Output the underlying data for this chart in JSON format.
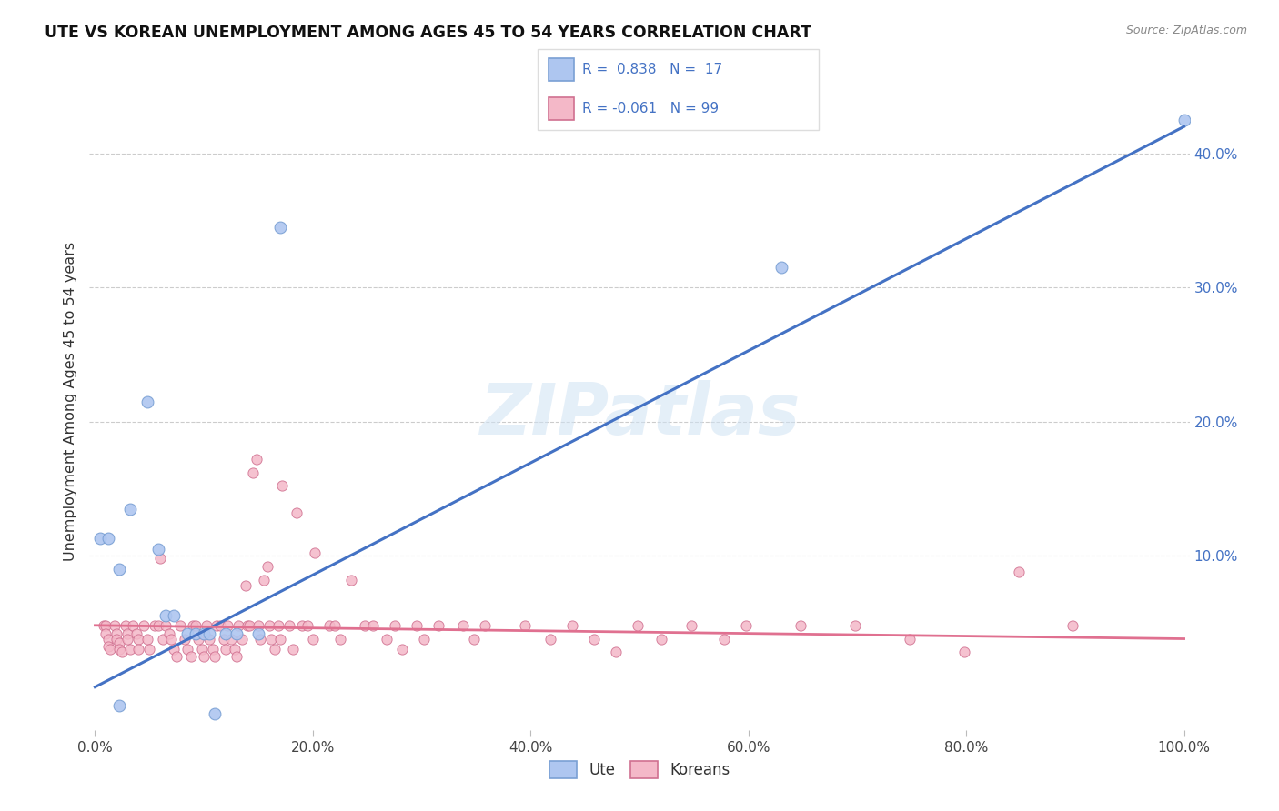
{
  "title": "UTE VS KOREAN UNEMPLOYMENT AMONG AGES 45 TO 54 YEARS CORRELATION CHART",
  "source": "Source: ZipAtlas.com",
  "ylabel": "Unemployment Among Ages 45 to 54 years",
  "xlim": [
    0.0,
    1.0
  ],
  "ylim": [
    -0.03,
    0.46
  ],
  "xticks": [
    0.0,
    0.2,
    0.4,
    0.6,
    0.8,
    1.0
  ],
  "xtick_labels": [
    "0.0%",
    "20.0%",
    "40.0%",
    "60.0%",
    "80.0%",
    "100.0%"
  ],
  "yticks": [
    0.1,
    0.2,
    0.3,
    0.4
  ],
  "ytick_labels": [
    "10.0%",
    "20.0%",
    "30.0%",
    "40.0%"
  ],
  "ute_color": "#aec6f0",
  "korean_color": "#f4b8c8",
  "ute_line_color": "#4472c4",
  "korean_line_color": "#e07090",
  "ute_edge_color": "#7aa0d4",
  "korean_edge_color": "#d07090",
  "watermark": "ZIPatlas",
  "ute_line": [
    0.0,
    0.002,
    1.0,
    0.42
  ],
  "korean_line": [
    0.0,
    0.048,
    1.0,
    0.038
  ],
  "ute_scatter": [
    [
      0.005,
      0.113
    ],
    [
      0.012,
      0.113
    ],
    [
      0.022,
      0.09
    ],
    [
      0.032,
      0.135
    ],
    [
      0.048,
      0.215
    ],
    [
      0.058,
      0.105
    ],
    [
      0.065,
      0.055
    ],
    [
      0.072,
      0.055
    ],
    [
      0.085,
      0.042
    ],
    [
      0.092,
      0.042
    ],
    [
      0.1,
      0.042
    ],
    [
      0.105,
      0.042
    ],
    [
      0.12,
      0.042
    ],
    [
      0.13,
      0.042
    ],
    [
      0.15,
      0.042
    ],
    [
      0.17,
      0.345
    ],
    [
      0.63,
      0.315
    ],
    [
      1.0,
      0.425
    ],
    [
      0.022,
      -0.012
    ],
    [
      0.11,
      -0.018
    ]
  ],
  "korean_scatter": [
    [
      0.008,
      0.048
    ],
    [
      0.01,
      0.048
    ],
    [
      0.01,
      0.042
    ],
    [
      0.012,
      0.038
    ],
    [
      0.012,
      0.032
    ],
    [
      0.014,
      0.03
    ],
    [
      0.018,
      0.048
    ],
    [
      0.02,
      0.042
    ],
    [
      0.02,
      0.038
    ],
    [
      0.022,
      0.035
    ],
    [
      0.022,
      0.03
    ],
    [
      0.025,
      0.028
    ],
    [
      0.028,
      0.048
    ],
    [
      0.03,
      0.042
    ],
    [
      0.03,
      0.038
    ],
    [
      0.032,
      0.03
    ],
    [
      0.035,
      0.048
    ],
    [
      0.038,
      0.042
    ],
    [
      0.04,
      0.038
    ],
    [
      0.04,
      0.03
    ],
    [
      0.045,
      0.048
    ],
    [
      0.048,
      0.038
    ],
    [
      0.05,
      0.03
    ],
    [
      0.055,
      0.048
    ],
    [
      0.058,
      0.048
    ],
    [
      0.06,
      0.098
    ],
    [
      0.062,
      0.038
    ],
    [
      0.065,
      0.048
    ],
    [
      0.068,
      0.042
    ],
    [
      0.07,
      0.038
    ],
    [
      0.072,
      0.03
    ],
    [
      0.075,
      0.025
    ],
    [
      0.078,
      0.048
    ],
    [
      0.082,
      0.038
    ],
    [
      0.085,
      0.03
    ],
    [
      0.088,
      0.025
    ],
    [
      0.09,
      0.048
    ],
    [
      0.092,
      0.048
    ],
    [
      0.095,
      0.038
    ],
    [
      0.098,
      0.03
    ],
    [
      0.1,
      0.025
    ],
    [
      0.102,
      0.048
    ],
    [
      0.105,
      0.038
    ],
    [
      0.108,
      0.03
    ],
    [
      0.11,
      0.025
    ],
    [
      0.112,
      0.048
    ],
    [
      0.115,
      0.048
    ],
    [
      0.118,
      0.038
    ],
    [
      0.12,
      0.03
    ],
    [
      0.122,
      0.048
    ],
    [
      0.125,
      0.038
    ],
    [
      0.128,
      0.03
    ],
    [
      0.13,
      0.025
    ],
    [
      0.132,
      0.048
    ],
    [
      0.135,
      0.038
    ],
    [
      0.138,
      0.078
    ],
    [
      0.14,
      0.048
    ],
    [
      0.142,
      0.048
    ],
    [
      0.145,
      0.162
    ],
    [
      0.148,
      0.172
    ],
    [
      0.15,
      0.048
    ],
    [
      0.152,
      0.038
    ],
    [
      0.155,
      0.082
    ],
    [
      0.158,
      0.092
    ],
    [
      0.16,
      0.048
    ],
    [
      0.162,
      0.038
    ],
    [
      0.165,
      0.03
    ],
    [
      0.168,
      0.048
    ],
    [
      0.17,
      0.038
    ],
    [
      0.172,
      0.152
    ],
    [
      0.178,
      0.048
    ],
    [
      0.182,
      0.03
    ],
    [
      0.185,
      0.132
    ],
    [
      0.19,
      0.048
    ],
    [
      0.195,
      0.048
    ],
    [
      0.2,
      0.038
    ],
    [
      0.202,
      0.102
    ],
    [
      0.215,
      0.048
    ],
    [
      0.22,
      0.048
    ],
    [
      0.225,
      0.038
    ],
    [
      0.235,
      0.082
    ],
    [
      0.248,
      0.048
    ],
    [
      0.255,
      0.048
    ],
    [
      0.268,
      0.038
    ],
    [
      0.275,
      0.048
    ],
    [
      0.282,
      0.03
    ],
    [
      0.295,
      0.048
    ],
    [
      0.302,
      0.038
    ],
    [
      0.315,
      0.048
    ],
    [
      0.338,
      0.048
    ],
    [
      0.348,
      0.038
    ],
    [
      0.358,
      0.048
    ],
    [
      0.395,
      0.048
    ],
    [
      0.418,
      0.038
    ],
    [
      0.438,
      0.048
    ],
    [
      0.458,
      0.038
    ],
    [
      0.478,
      0.028
    ],
    [
      0.498,
      0.048
    ],
    [
      0.52,
      0.038
    ],
    [
      0.548,
      0.048
    ],
    [
      0.578,
      0.038
    ],
    [
      0.598,
      0.048
    ],
    [
      0.648,
      0.048
    ],
    [
      0.698,
      0.048
    ],
    [
      0.748,
      0.038
    ],
    [
      0.798,
      0.028
    ],
    [
      0.848,
      0.088
    ],
    [
      0.898,
      0.048
    ]
  ]
}
